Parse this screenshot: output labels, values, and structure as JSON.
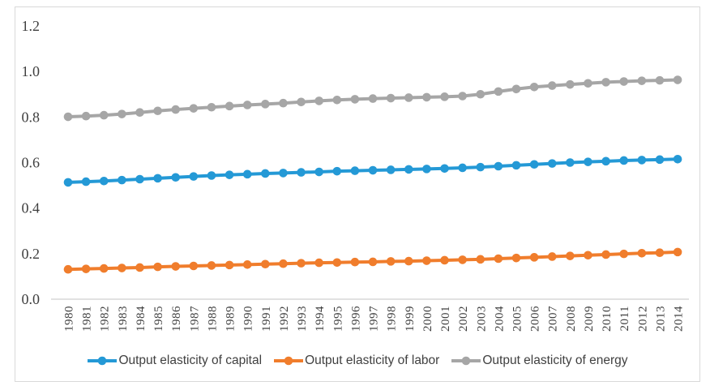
{
  "figure": {
    "background": "#ffffff",
    "frame_border_color": "#d9d9d9",
    "axis_line_color": "#d9d9d9",
    "tick_text_color": "#3f3f3f",
    "legend_text_color": "#404040"
  },
  "chart_data": {
    "type": "line",
    "title": "",
    "xlabel": "",
    "ylabel": "",
    "ylim": [
      0.0,
      1.2
    ],
    "y_ticks": [
      "0.0",
      "0.2",
      "0.4",
      "0.6",
      "0.8",
      "1.0",
      "1.2"
    ],
    "grid": false,
    "legend_position": "bottom",
    "x": [
      1980,
      1981,
      1982,
      1983,
      1984,
      1985,
      1986,
      1987,
      1988,
      1989,
      1990,
      1991,
      1992,
      1993,
      1994,
      1995,
      1996,
      1997,
      1998,
      1999,
      2000,
      2001,
      2002,
      2003,
      2004,
      2005,
      2006,
      2007,
      2008,
      2009,
      2010,
      2011,
      2012,
      2013,
      2014
    ],
    "series": [
      {
        "name": "Output elasticity of capital",
        "color": "#2499d6",
        "values": [
          0.513,
          0.516,
          0.519,
          0.523,
          0.527,
          0.531,
          0.535,
          0.539,
          0.543,
          0.546,
          0.549,
          0.552,
          0.554,
          0.557,
          0.559,
          0.562,
          0.564,
          0.566,
          0.568,
          0.57,
          0.572,
          0.574,
          0.577,
          0.58,
          0.584,
          0.588,
          0.592,
          0.596,
          0.6,
          0.603,
          0.606,
          0.609,
          0.611,
          0.613,
          0.615
        ]
      },
      {
        "name": "Output elasticity of labor",
        "color": "#f07d2c",
        "values": [
          0.131,
          0.133,
          0.135,
          0.137,
          0.139,
          0.142,
          0.144,
          0.146,
          0.148,
          0.15,
          0.152,
          0.154,
          0.156,
          0.158,
          0.16,
          0.161,
          0.163,
          0.164,
          0.166,
          0.167,
          0.169,
          0.171,
          0.173,
          0.175,
          0.178,
          0.181,
          0.184,
          0.187,
          0.19,
          0.193,
          0.196,
          0.199,
          0.202,
          0.204,
          0.207
        ]
      },
      {
        "name": "Output elasticity of energy",
        "color": "#a6a6a6",
        "values": [
          0.801,
          0.804,
          0.808,
          0.813,
          0.82,
          0.827,
          0.833,
          0.838,
          0.843,
          0.848,
          0.853,
          0.857,
          0.861,
          0.866,
          0.871,
          0.875,
          0.878,
          0.881,
          0.883,
          0.885,
          0.887,
          0.889,
          0.892,
          0.9,
          0.912,
          0.923,
          0.932,
          0.938,
          0.943,
          0.948,
          0.953,
          0.956,
          0.959,
          0.961,
          0.963
        ]
      }
    ]
  }
}
